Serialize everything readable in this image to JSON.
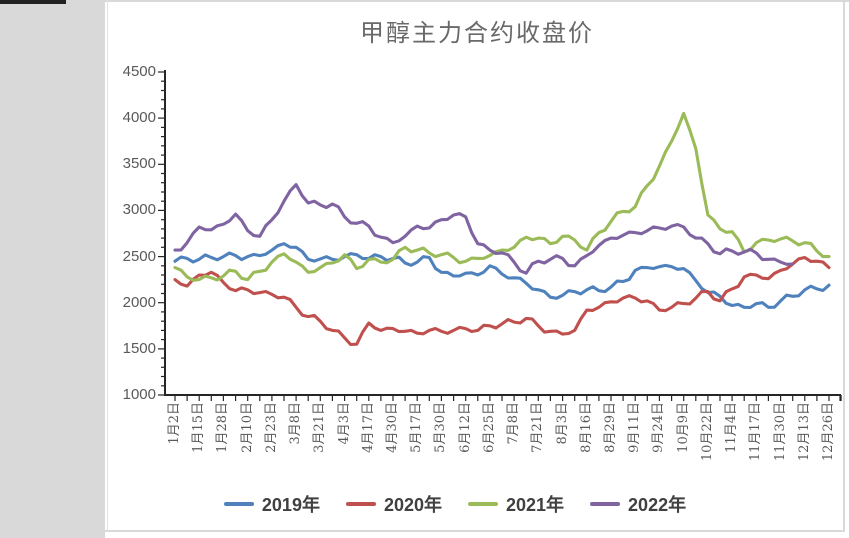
{
  "window": {
    "left_panel_color": "#d9d9d9",
    "top_bar_color": "#212121",
    "chart_border_color": "#d9d9d9"
  },
  "chart_data": {
    "type": "line",
    "title": "甲醇主力合约收盘价",
    "gridlines": false,
    "legend_position": "bottom",
    "axis_color": "#262626",
    "label_color": "#595959",
    "legend_text_color": "#404040",
    "ylim": [
      1000,
      4500
    ],
    "y_tick_step": 500,
    "y_minor_tick_step": 100,
    "y_ticks": [
      1000,
      1500,
      2000,
      2500,
      3000,
      3500,
      4000,
      4500
    ],
    "x_labels": [
      "1月2日",
      "1月15日",
      "1月28日",
      "2月10日",
      "2月23日",
      "3月8日",
      "3月21日",
      "4月3日",
      "4月17日",
      "4月30日",
      "5月17日",
      "5月30日",
      "6月12日",
      "6月25日",
      "7月8日",
      "7月21日",
      "8月3日",
      "8月16日",
      "8月29日",
      "9月11日",
      "9月24日",
      "10月9日",
      "10月22日",
      "11月4日",
      "11月17日",
      "11月30日",
      "12月13日",
      "12月26日"
    ],
    "points_per_label": 2,
    "series": [
      {
        "name": "2019年",
        "color": "#4F81BD",
        "values": [
          2450,
          2480,
          2470,
          2490,
          2500,
          2510,
          2500,
          2510,
          2570,
          2640,
          2600,
          2470,
          2475,
          2470,
          2500,
          2520,
          2480,
          2500,
          2480,
          2430,
          2440,
          2490,
          2330,
          2290,
          2320,
          2300,
          2400,
          2310,
          2270,
          2210,
          2140,
          2060,
          2080,
          2120,
          2140,
          2130,
          2170,
          2230,
          2350,
          2380,
          2390,
          2390,
          2370,
          2240,
          2110,
          2070,
          1970,
          1950,
          1990,
          1950,
          2020,
          2070,
          2140,
          2150,
          2190
        ]
      },
      {
        "name": "2020年",
        "color": "#C0504D",
        "values": [
          2250,
          2180,
          2300,
          2330,
          2220,
          2130,
          2140,
          2110,
          2090,
          2060,
          1950,
          1850,
          1800,
          1700,
          1620,
          1550,
          1780,
          1700,
          1720,
          1690,
          1670,
          1700,
          1690,
          1700,
          1720,
          1700,
          1750,
          1770,
          1790,
          1830,
          1750,
          1690,
          1660,
          1700,
          1920,
          1950,
          2010,
          2050,
          2050,
          2020,
          1920,
          1950,
          1990,
          2050,
          2120,
          2020,
          2150,
          2280,
          2300,
          2260,
          2350,
          2420,
          2490,
          2450,
          2380
        ]
      },
      {
        "name": "2021年",
        "color": "#9BBB59",
        "values": [
          2380,
          2280,
          2250,
          2270,
          2290,
          2340,
          2250,
          2340,
          2440,
          2530,
          2440,
          2330,
          2380,
          2430,
          2520,
          2370,
          2470,
          2440,
          2470,
          2600,
          2570,
          2540,
          2520,
          2490,
          2450,
          2480,
          2510,
          2570,
          2600,
          2710,
          2700,
          2640,
          2720,
          2680,
          2570,
          2760,
          2880,
          2990,
          3040,
          3270,
          3480,
          3750,
          4050,
          3670,
          2950,
          2800,
          2770,
          2550,
          2650,
          2680,
          2690,
          2670,
          2650,
          2560,
          2500
        ]
      },
      {
        "name": "2022年",
        "color": "#8064A2",
        "values": [
          2570,
          2650,
          2820,
          2790,
          2850,
          2960,
          2780,
          2720,
          2900,
          3100,
          3280,
          3080,
          3060,
          3070,
          2930,
          2860,
          2830,
          2710,
          2650,
          2720,
          2830,
          2810,
          2900,
          2950,
          2930,
          2640,
          2570,
          2540,
          2440,
          2320,
          2450,
          2470,
          2480,
          2400,
          2510,
          2620,
          2700,
          2730,
          2760,
          2780,
          2810,
          2830,
          2820,
          2700,
          2640,
          2530,
          2560,
          2550,
          2540,
          2470,
          2440,
          2420
        ]
      }
    ]
  }
}
